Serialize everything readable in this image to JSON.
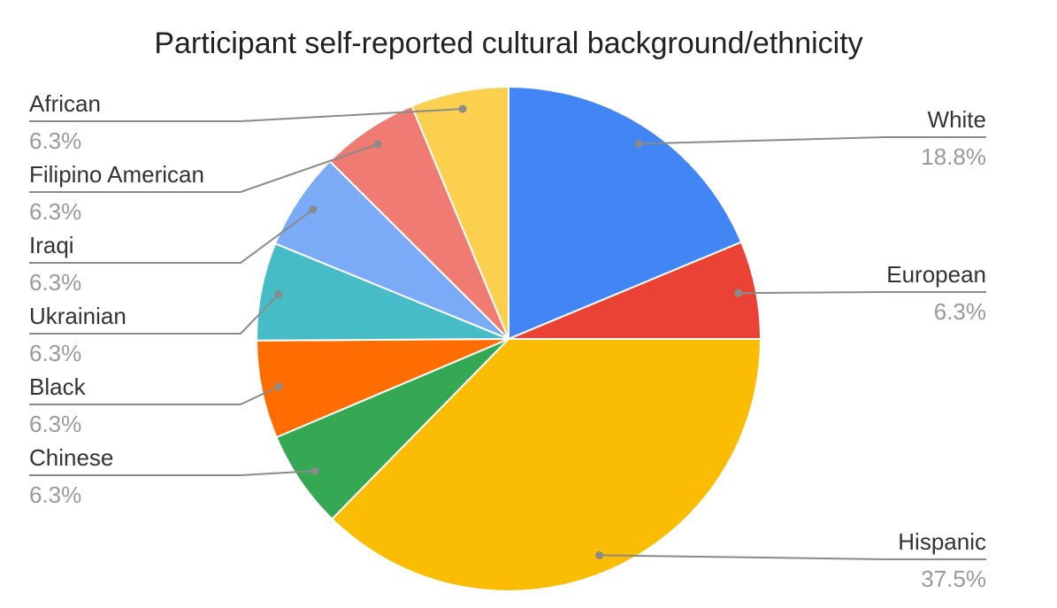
{
  "chart_data": {
    "type": "pie",
    "title": "Participant self-reported cultural background/ethnicity",
    "slices": [
      {
        "label": "White",
        "value": 18.8,
        "value_label": "18.8%",
        "color": "#4285F4"
      },
      {
        "label": "European",
        "value": 6.3,
        "value_label": "6.3%",
        "color": "#EA4335"
      },
      {
        "label": "Hispanic",
        "value": 37.5,
        "value_label": "37.5%",
        "color": "#FBBC04"
      },
      {
        "label": "Chinese",
        "value": 6.3,
        "value_label": "6.3%",
        "color": "#34A853"
      },
      {
        "label": "Black",
        "value": 6.3,
        "value_label": "6.3%",
        "color": "#FF6D01"
      },
      {
        "label": "Ukrainian",
        "value": 6.3,
        "value_label": "6.3%",
        "color": "#46BDC6"
      },
      {
        "label": "Iraqi",
        "value": 6.3,
        "value_label": "6.3%",
        "color": "#7BAAF7"
      },
      {
        "label": "Filipino American",
        "value": 6.3,
        "value_label": "6.3%",
        "color": "#F07B72"
      },
      {
        "label": "African",
        "value": 6.3,
        "value_label": "6.3%",
        "color": "#FCD04F"
      }
    ],
    "start_angle_deg": 0,
    "direction": "clockwise",
    "legend": "none"
  }
}
